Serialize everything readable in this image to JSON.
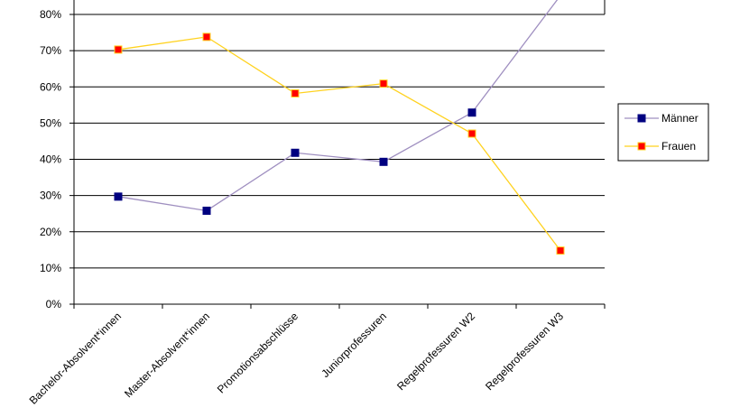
{
  "chart_data": {
    "type": "line",
    "categories": [
      "Bachelor-Absolvent*innen",
      "Master-Absolvent*innen",
      "Promotionsabschlüsse",
      "Juniorprofessuren",
      "Regelprofessuren W2",
      "Regelprofessuren W3"
    ],
    "series": [
      {
        "name": "Männer",
        "values": [
          29.7,
          25.8,
          41.8,
          39.3,
          52.9,
          85.2
        ],
        "line_color": "#9F8FC0",
        "marker_color": "#000080",
        "marker_border": "#000080"
      },
      {
        "name": "Frauen",
        "values": [
          70.3,
          73.8,
          58.2,
          60.9,
          47.1,
          14.8
        ],
        "line_color": "#FFD21F",
        "marker_color": "#FF0000",
        "marker_border": "#FFD21F"
      }
    ],
    "ylim": [
      0,
      80
    ],
    "yticks": [
      0,
      10,
      20,
      30,
      40,
      50,
      60,
      70,
      80
    ],
    "ytick_labels": [
      "0%",
      "10%",
      "20%",
      "30%",
      "40%",
      "50%",
      "60%",
      "70%",
      "80%"
    ],
    "grid": true,
    "legend_position": "right",
    "title": "",
    "xlabel": "",
    "ylabel": ""
  }
}
